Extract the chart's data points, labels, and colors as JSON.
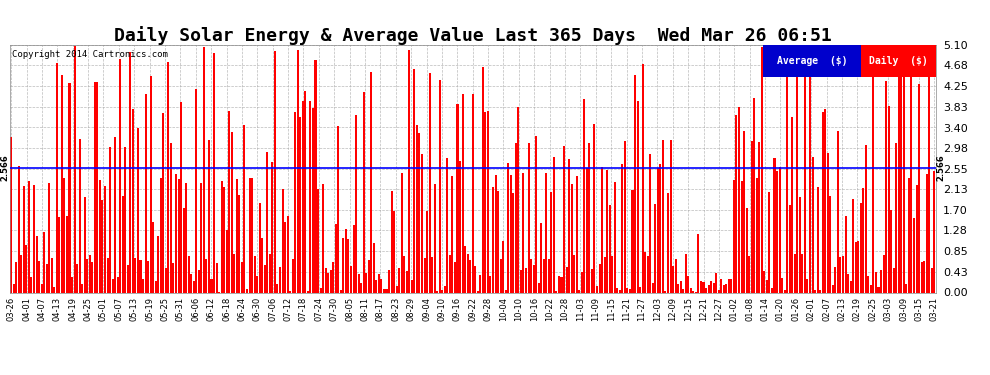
{
  "title": "Daily Solar Energy & Average Value Last 365 Days  Wed Mar 26 06:51",
  "copyright": "Copyright 2014 Cartronics.com",
  "bar_color": "#ff0000",
  "avg_line_color": "#0000ff",
  "avg_value": 2.566,
  "ylim": [
    0,
    5.1
  ],
  "yticks": [
    0.0,
    0.43,
    0.85,
    1.28,
    1.7,
    2.13,
    2.55,
    2.98,
    3.4,
    3.83,
    4.25,
    4.68,
    5.1
  ],
  "background_color": "#ffffff",
  "plot_bg_color": "#ffffff",
  "grid_color": "#aaaaaa",
  "title_fontsize": 13,
  "legend_avg_color": "#0000cc",
  "legend_daily_color": "#ff0000",
  "x_labels": [
    "03-26",
    "04-01",
    "04-07",
    "04-13",
    "04-19",
    "04-25",
    "05-01",
    "05-07",
    "05-13",
    "05-19",
    "05-25",
    "05-31",
    "06-06",
    "06-12",
    "06-18",
    "06-24",
    "06-30",
    "07-06",
    "07-12",
    "07-18",
    "07-24",
    "07-30",
    "08-05",
    "08-11",
    "08-17",
    "08-23",
    "08-29",
    "09-04",
    "09-10",
    "09-16",
    "09-22",
    "09-28",
    "10-04",
    "10-10",
    "10-16",
    "10-22",
    "10-28",
    "11-03",
    "11-09",
    "11-15",
    "11-21",
    "11-27",
    "12-03",
    "12-09",
    "12-15",
    "12-21",
    "12-27",
    "01-02",
    "01-08",
    "01-14",
    "01-20",
    "01-26",
    "02-01",
    "02-07",
    "02-13",
    "02-19",
    "02-25",
    "03-03",
    "03-09",
    "03-15",
    "03-21"
  ],
  "n_bars": 365,
  "seed": 42
}
